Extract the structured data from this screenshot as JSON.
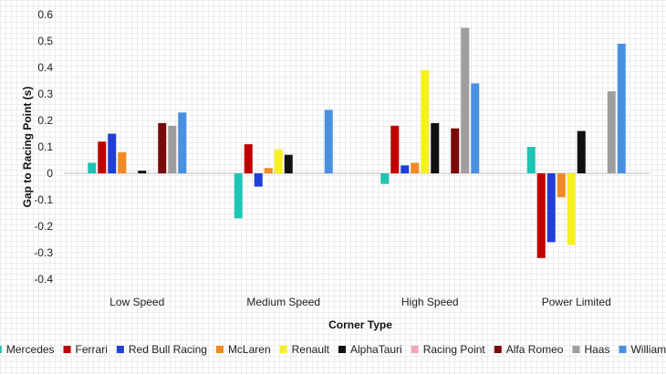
{
  "chart_data": {
    "type": "bar",
    "title": "",
    "xlabel": "Corner Type",
    "ylabel": "Gap to Racing Point (s)",
    "ylim": [
      -0.4,
      0.6
    ],
    "yticks": [
      "0.6",
      "0.5",
      "0.4",
      "0.3",
      "0.2",
      "0.1",
      "0",
      "-0.1",
      "-0.2",
      "-0.3",
      "-0.4"
    ],
    "ytick_values": [
      0.6,
      0.5,
      0.4,
      0.3,
      0.2,
      0.1,
      0,
      -0.1,
      -0.2,
      -0.3,
      -0.4
    ],
    "categories": [
      "Low Speed",
      "Medium Speed",
      "High Speed",
      "Power Limited"
    ],
    "legend_position": "bottom",
    "series": [
      {
        "name": "Mercedes",
        "color": "#1fc4b4",
        "values": [
          0.04,
          -0.17,
          -0.04,
          0.1
        ]
      },
      {
        "name": "Ferrari",
        "color": "#c00000",
        "values": [
          0.12,
          0.11,
          0.18,
          -0.32
        ]
      },
      {
        "name": "Red Bull Racing",
        "color": "#1f3fd6",
        "values": [
          0.15,
          -0.05,
          0.03,
          -0.26
        ]
      },
      {
        "name": "McLaren",
        "color": "#f08a24",
        "values": [
          0.08,
          0.02,
          0.04,
          -0.09
        ]
      },
      {
        "name": "Renault",
        "color": "#f5f01e",
        "values": [
          0.0,
          0.09,
          0.39,
          -0.27
        ]
      },
      {
        "name": "AlphaTauri",
        "color": "#111111",
        "values": [
          0.01,
          0.07,
          0.19,
          0.16
        ]
      },
      {
        "name": "Racing Point",
        "color": "#f4a7b9",
        "values": [
          0.0,
          0.0,
          0.0,
          0.0
        ]
      },
      {
        "name": "Alfa Romeo",
        "color": "#7a0a0a",
        "values": [
          0.19,
          0.0,
          0.17,
          0.0
        ]
      },
      {
        "name": "Haas",
        "color": "#9e9e9e",
        "values": [
          0.18,
          0.0,
          0.55,
          0.31
        ]
      },
      {
        "name": "Williams",
        "color": "#4a90e2",
        "values": [
          0.23,
          0.24,
          0.34,
          0.49
        ]
      }
    ]
  }
}
